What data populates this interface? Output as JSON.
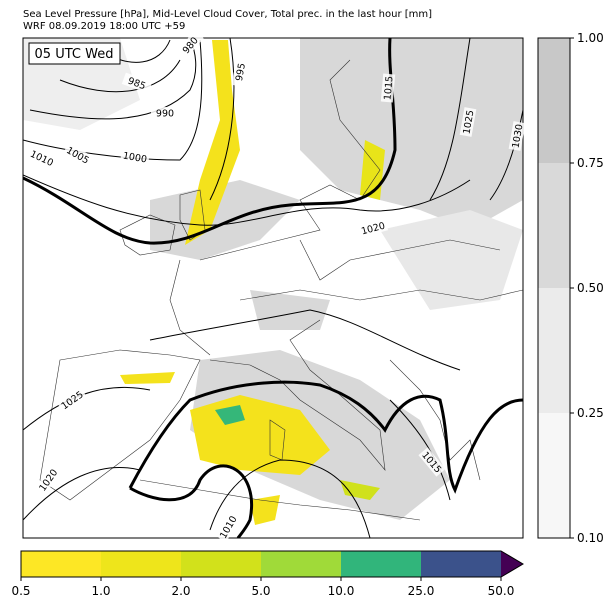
{
  "header": {
    "title": "Sea Level Pressure [hPa], Mid-Level Cloud Cover, Total prec. in the last hour [mm]",
    "subtitle": "WRF 08.09.2019 18:00 UTC +59"
  },
  "map": {
    "time_label": "05 UTC Wed",
    "isobar_labels": [
      "980",
      "985",
      "990",
      "995",
      "1000",
      "1005",
      "1010",
      "1015",
      "1025",
      "1030",
      "1020",
      "1025",
      "1020",
      "1010",
      "1015"
    ]
  },
  "cloud_colorbar": {
    "ticks": [
      "0.10",
      "0.25",
      "0.50",
      "0.75",
      "1.00"
    ]
  },
  "precip_colorbar": {
    "ticks": [
      "0.5",
      "1.0",
      "2.0",
      "5.0",
      "10.0",
      "25.0",
      "50.0"
    ]
  }
}
